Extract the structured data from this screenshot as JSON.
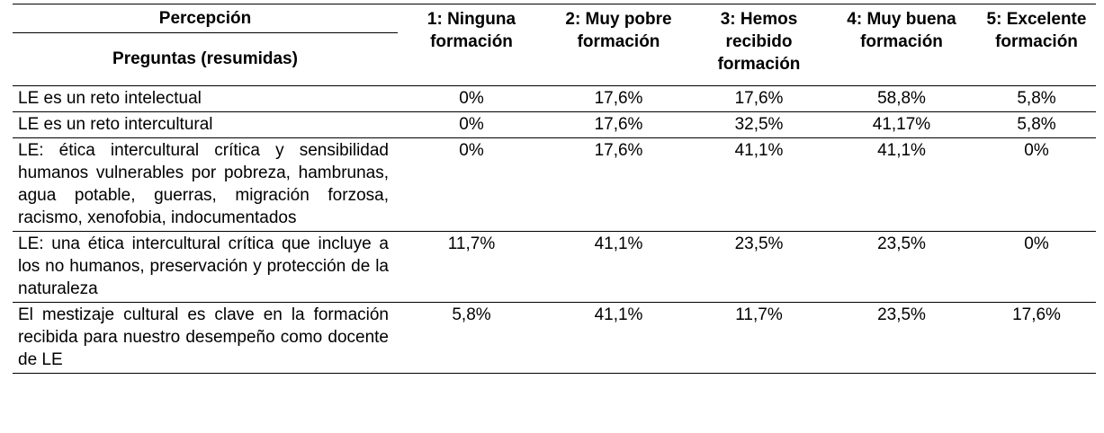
{
  "table": {
    "header": {
      "percepcion": "Percepción",
      "preguntas": "Preguntas (resumidas)",
      "scale": [
        "1: Ninguna formación",
        "2: Muy pobre formación",
        "3: Hemos recibido formación",
        "4: Muy buena formación",
        "5: Excelente formación"
      ]
    },
    "rows": [
      {
        "question": "LE es un reto intelectual",
        "values": [
          "0%",
          "17,6%",
          "17,6%",
          "58,8%",
          "5,8%"
        ]
      },
      {
        "question": "LE es un reto intercultural",
        "values": [
          "0%",
          "17,6%",
          "32,5%",
          "41,17%",
          "5,8%"
        ]
      },
      {
        "question": "LE: ética intercultural crítica y sensibilidad humanos vulnerables por pobreza, hambrunas, agua potable, guerras, migración forzosa, racismo, xenofobia, indocumentados",
        "values": [
          "0%",
          "17,6%",
          "41,1%",
          "41,1%",
          "0%"
        ]
      },
      {
        "question": "LE: una ética intercultural crítica que incluye a los no humanos, preservación y protección de la naturaleza",
        "values": [
          "11,7%",
          "41,1%",
          "23,5%",
          "23,5%",
          "0%"
        ]
      },
      {
        "question": "El mestizaje cultural es clave en la formación recibida para nuestro desempeño como docente de LE",
        "values": [
          "5,8%",
          "41,1%",
          "11,7%",
          "23,5%",
          "17,6%"
        ]
      }
    ]
  }
}
